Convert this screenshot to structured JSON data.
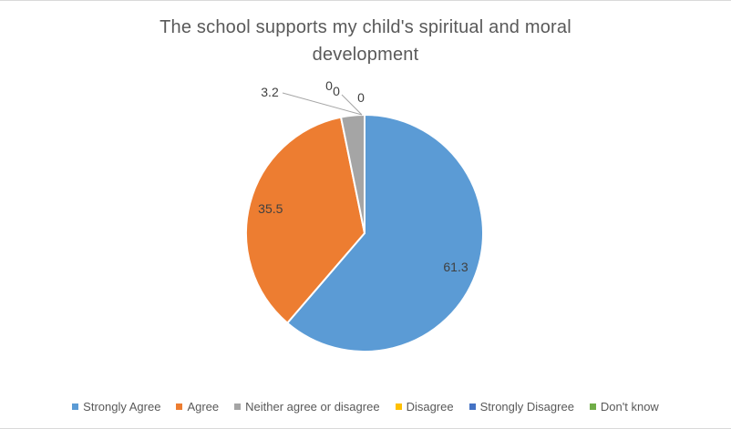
{
  "chart_data": {
    "type": "pie",
    "title": "The school supports my child's spiritual and moral development",
    "categories": [
      "Strongly Agree",
      "Agree",
      "Neither agree or disagree",
      "Disagree",
      "Strongly Disagree",
      "Don't know"
    ],
    "values": [
      61.3,
      35.5,
      3.2,
      0,
      0,
      0
    ],
    "data_labels": [
      "61.3",
      "35.5",
      "3.2",
      "0",
      "0",
      "0"
    ],
    "colors": [
      "#5B9BD5",
      "#ED7D31",
      "#A5A5A5",
      "#FFC000",
      "#4472C4",
      "#70AD47"
    ],
    "start_angle_deg": 0,
    "direction": "clockwise",
    "legend_position": "bottom",
    "grid": false,
    "title_color": "#595959",
    "data_label_color": "#404040",
    "legend_text_color": "#595959",
    "leader_line_color": "#A6A6A6",
    "slice_border_color": "#FFFFFF",
    "frame_border_color": "#D9D9D9"
  }
}
